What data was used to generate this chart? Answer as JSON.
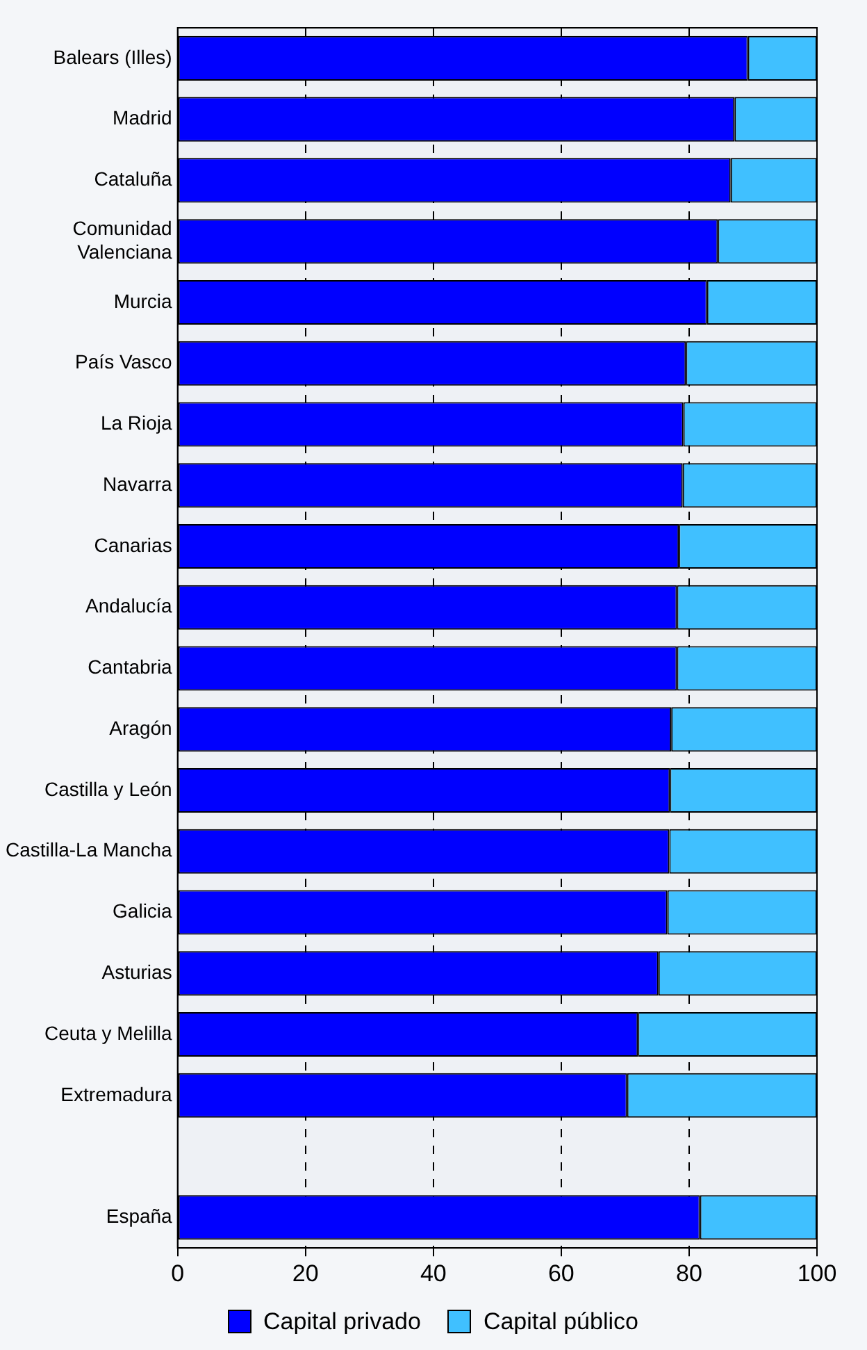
{
  "chart_data": {
    "type": "bar",
    "orientation": "horizontal",
    "stacked": true,
    "categories": [
      "Balears (Illes)",
      "Madrid",
      "Cataluña",
      "Comunidad\nValenciana",
      "Murcia",
      "País Vasco",
      "La Rioja",
      "Navarra",
      "Canarias",
      "Andalucía",
      "Cantabria",
      "Aragón",
      "Castilla y León",
      "Castilla-La Mancha",
      "Galicia",
      "Asturias",
      "Ceuta y Melilla",
      "Extremadura",
      null,
      "España"
    ],
    "series": [
      {
        "name": "Capital privado",
        "color": "#0000ff",
        "values": [
          89.2,
          87.1,
          86.5,
          84.5,
          82.8,
          79.5,
          79.1,
          79.0,
          78.4,
          78.1,
          78.1,
          77.2,
          77.0,
          76.9,
          76.6,
          75.2,
          72.0,
          70.3,
          null,
          81.7
        ]
      },
      {
        "name": "Capital público",
        "color": "#40c0ff",
        "values": [
          10.8,
          12.9,
          13.5,
          15.5,
          17.2,
          20.5,
          20.9,
          21.0,
          21.6,
          21.9,
          21.9,
          22.8,
          23.0,
          23.1,
          23.4,
          24.8,
          28.0,
          29.7,
          null,
          18.3
        ]
      }
    ],
    "xlim": [
      0,
      100
    ],
    "xticks": [
      0,
      20,
      40,
      60,
      80,
      100
    ],
    "grid": "x",
    "line_style": "dashed",
    "legend": "bottom"
  }
}
